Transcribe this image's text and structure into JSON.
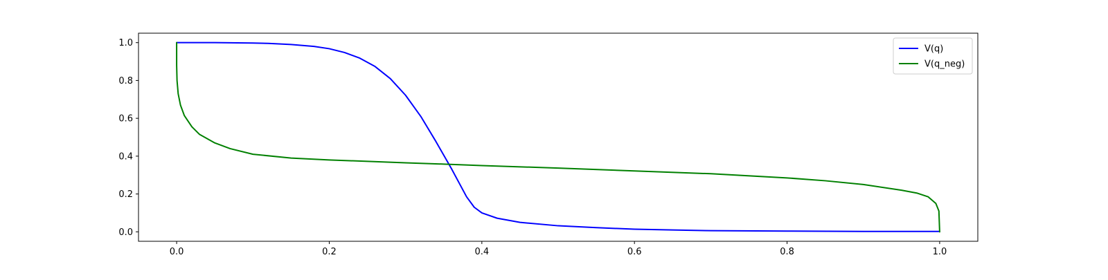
{
  "chart_data": {
    "type": "line",
    "xlim": [
      -0.05,
      1.05
    ],
    "ylim": [
      -0.05,
      1.05
    ],
    "xticks": [
      0.0,
      0.2,
      0.4,
      0.6,
      0.8,
      1.0
    ],
    "xtick_labels": [
      "0.0",
      "0.2",
      "0.4",
      "0.6",
      "0.8",
      "1.0"
    ],
    "yticks": [
      0.0,
      0.2,
      0.4,
      0.6,
      0.8,
      1.0
    ],
    "ytick_labels": [
      "0.0",
      "0.2",
      "0.4",
      "0.6",
      "0.8",
      "1.0"
    ],
    "grid": false,
    "legend_position": "top-right",
    "series": [
      {
        "name": "V(q)",
        "color": "#0000ff",
        "points": [
          [
            0.0,
            1.0
          ],
          [
            0.05,
            1.0
          ],
          [
            0.1,
            0.998
          ],
          [
            0.12,
            0.996
          ],
          [
            0.15,
            0.99
          ],
          [
            0.18,
            0.98
          ],
          [
            0.2,
            0.968
          ],
          [
            0.22,
            0.948
          ],
          [
            0.24,
            0.918
          ],
          [
            0.26,
            0.874
          ],
          [
            0.28,
            0.81
          ],
          [
            0.3,
            0.722
          ],
          [
            0.32,
            0.61
          ],
          [
            0.34,
            0.476
          ],
          [
            0.36,
            0.335
          ],
          [
            0.38,
            0.185
          ],
          [
            0.39,
            0.13
          ],
          [
            0.4,
            0.1
          ],
          [
            0.42,
            0.072
          ],
          [
            0.45,
            0.05
          ],
          [
            0.5,
            0.032
          ],
          [
            0.55,
            0.022
          ],
          [
            0.6,
            0.014
          ],
          [
            0.65,
            0.01
          ],
          [
            0.7,
            0.006
          ],
          [
            0.8,
            0.004
          ],
          [
            0.9,
            0.002
          ],
          [
            1.0,
            0.002
          ]
        ]
      },
      {
        "name": "V(q_neg)",
        "color": "#008000",
        "points": [
          [
            0.0,
            1.0
          ],
          [
            0.0,
            0.88
          ],
          [
            0.0005,
            0.8
          ],
          [
            0.002,
            0.73
          ],
          [
            0.005,
            0.67
          ],
          [
            0.01,
            0.615
          ],
          [
            0.02,
            0.555
          ],
          [
            0.03,
            0.515
          ],
          [
            0.05,
            0.47
          ],
          [
            0.07,
            0.44
          ],
          [
            0.1,
            0.41
          ],
          [
            0.15,
            0.39
          ],
          [
            0.2,
            0.38
          ],
          [
            0.3,
            0.365
          ],
          [
            0.35,
            0.358
          ],
          [
            0.4,
            0.35
          ],
          [
            0.5,
            0.337
          ],
          [
            0.6,
            0.322
          ],
          [
            0.7,
            0.307
          ],
          [
            0.8,
            0.285
          ],
          [
            0.85,
            0.27
          ],
          [
            0.9,
            0.25
          ],
          [
            0.95,
            0.22
          ],
          [
            0.97,
            0.205
          ],
          [
            0.985,
            0.185
          ],
          [
            0.995,
            0.15
          ],
          [
            0.999,
            0.11
          ],
          [
            1.0,
            0.0
          ]
        ]
      }
    ]
  }
}
